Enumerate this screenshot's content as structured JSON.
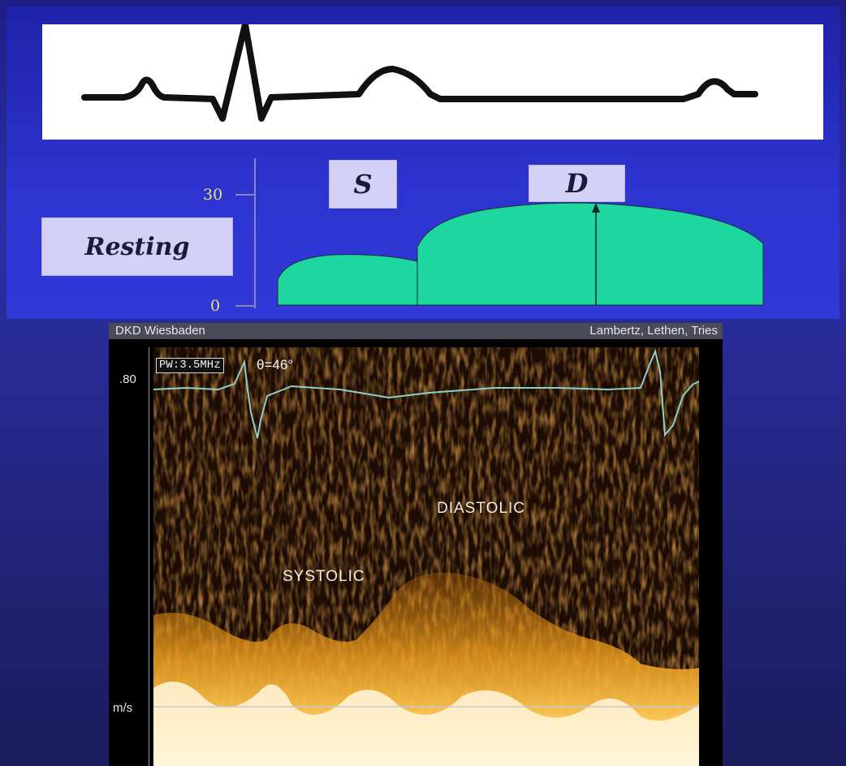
{
  "top_panel": {
    "ecg_trace": "ecg-waveform",
    "labels": {
      "resting": "Resting",
      "s": "S",
      "d": "D"
    },
    "y_axis": {
      "ticks": [
        "30",
        "0"
      ]
    },
    "colors": {
      "flow_fill": "#1ed6a0",
      "background": "#2e34d0",
      "label_box": "#d4d0f6",
      "tick_label": "#e8e27a"
    }
  },
  "doppler": {
    "header": {
      "left": "DKD Wiesbaden",
      "right": "Lambertz, Lethen, Tries"
    },
    "mode_tag": "PW:3.5MHz",
    "angle": "θ=46°",
    "scale": {
      "top": ".80",
      "unit": "m/s"
    },
    "annotations": {
      "diastolic": "DIASTOLIC",
      "systolic": "SYSTOLIC"
    },
    "colors": {
      "signal": "#ffb020",
      "background": "#1c0c04",
      "ecg": "#8fd0c8"
    }
  }
}
